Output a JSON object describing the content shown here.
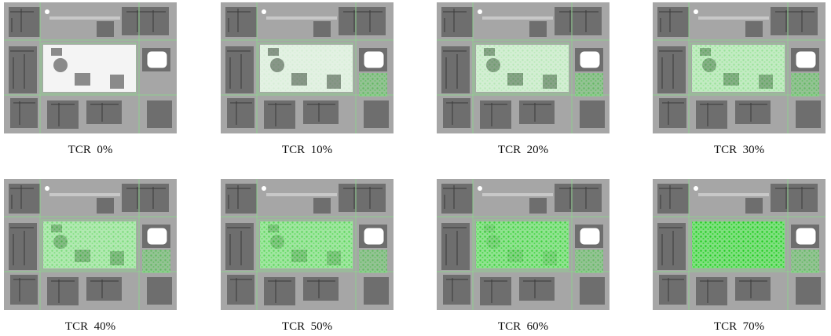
{
  "panels": [
    {
      "caption": "TCR  0%"
    },
    {
      "caption": "TCR  10%"
    },
    {
      "caption": "TCR  20%"
    },
    {
      "caption": "TCR  30%"
    },
    {
      "caption": "TCR  40%"
    },
    {
      "caption": "TCR  50%"
    },
    {
      "caption": "TCR  60%"
    },
    {
      "caption": "TCR  70%"
    }
  ]
}
